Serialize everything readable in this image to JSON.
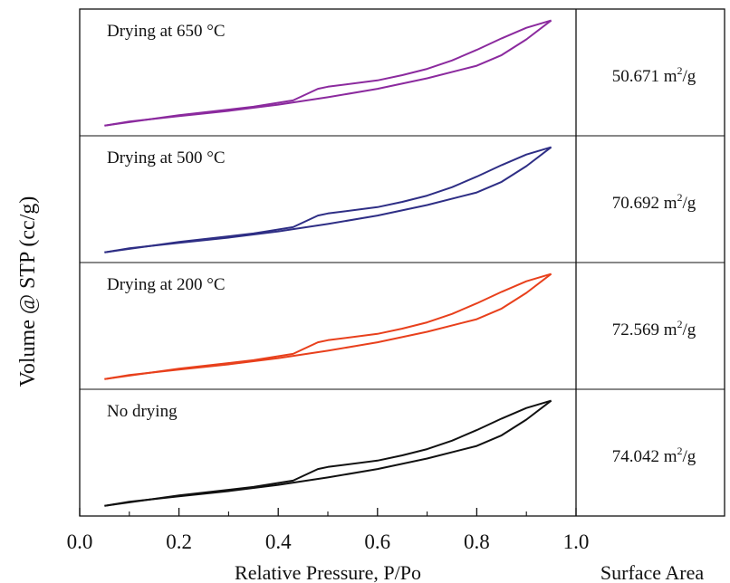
{
  "chart_data": {
    "type": "line",
    "xlabel": "Relative Pressure, P/Po",
    "ylabel": "Volume @ STP (cc/g)",
    "right_column_label": "Surface Area",
    "xlim": [
      0.0,
      1.0
    ],
    "xticks": [
      "0.0",
      "0.2",
      "0.4",
      "0.6",
      "0.8",
      "1.0"
    ],
    "area_unit": "m",
    "area_unit_exp": "2",
    "area_unit_suffix": "/g",
    "panels": [
      {
        "label": "Drying at 650 °C",
        "surface_area": "50.671",
        "color": "#8b2a9e",
        "adsorption": [
          [
            0.05,
            0.0
          ],
          [
            0.1,
            0.04
          ],
          [
            0.2,
            0.09
          ],
          [
            0.3,
            0.14
          ],
          [
            0.4,
            0.2
          ],
          [
            0.5,
            0.27
          ],
          [
            0.6,
            0.35
          ],
          [
            0.7,
            0.45
          ],
          [
            0.8,
            0.57
          ],
          [
            0.85,
            0.67
          ],
          [
            0.9,
            0.82
          ],
          [
            0.95,
            1.0
          ]
        ],
        "desorption": [
          [
            0.95,
            1.0
          ],
          [
            0.9,
            0.93
          ],
          [
            0.85,
            0.83
          ],
          [
            0.8,
            0.72
          ],
          [
            0.75,
            0.62
          ],
          [
            0.7,
            0.54
          ],
          [
            0.65,
            0.48
          ],
          [
            0.6,
            0.43
          ],
          [
            0.5,
            0.37
          ],
          [
            0.48,
            0.35
          ],
          [
            0.43,
            0.24
          ],
          [
            0.35,
            0.18
          ],
          [
            0.2,
            0.1
          ],
          [
            0.05,
            0.0
          ]
        ]
      },
      {
        "label": "Drying at 500 °C",
        "surface_area": "70.692",
        "color": "#2e2e85",
        "adsorption": [
          [
            0.05,
            0.0
          ],
          [
            0.1,
            0.04
          ],
          [
            0.2,
            0.09
          ],
          [
            0.3,
            0.14
          ],
          [
            0.4,
            0.2
          ],
          [
            0.5,
            0.27
          ],
          [
            0.6,
            0.35
          ],
          [
            0.7,
            0.45
          ],
          [
            0.8,
            0.57
          ],
          [
            0.85,
            0.67
          ],
          [
            0.9,
            0.82
          ],
          [
            0.95,
            1.0
          ]
        ],
        "desorption": [
          [
            0.95,
            1.0
          ],
          [
            0.9,
            0.93
          ],
          [
            0.85,
            0.83
          ],
          [
            0.8,
            0.72
          ],
          [
            0.75,
            0.62
          ],
          [
            0.7,
            0.54
          ],
          [
            0.65,
            0.48
          ],
          [
            0.6,
            0.43
          ],
          [
            0.5,
            0.37
          ],
          [
            0.48,
            0.35
          ],
          [
            0.43,
            0.24
          ],
          [
            0.35,
            0.18
          ],
          [
            0.2,
            0.1
          ],
          [
            0.05,
            0.0
          ]
        ]
      },
      {
        "label": "Drying at 200 °C",
        "surface_area": "72.569",
        "color": "#e8401c",
        "adsorption": [
          [
            0.05,
            0.0
          ],
          [
            0.1,
            0.04
          ],
          [
            0.2,
            0.09
          ],
          [
            0.3,
            0.14
          ],
          [
            0.4,
            0.2
          ],
          [
            0.5,
            0.27
          ],
          [
            0.6,
            0.35
          ],
          [
            0.7,
            0.45
          ],
          [
            0.8,
            0.57
          ],
          [
            0.85,
            0.67
          ],
          [
            0.9,
            0.82
          ],
          [
            0.95,
            1.0
          ]
        ],
        "desorption": [
          [
            0.95,
            1.0
          ],
          [
            0.9,
            0.93
          ],
          [
            0.85,
            0.83
          ],
          [
            0.8,
            0.72
          ],
          [
            0.75,
            0.62
          ],
          [
            0.7,
            0.54
          ],
          [
            0.65,
            0.48
          ],
          [
            0.6,
            0.43
          ],
          [
            0.5,
            0.37
          ],
          [
            0.48,
            0.35
          ],
          [
            0.43,
            0.24
          ],
          [
            0.35,
            0.18
          ],
          [
            0.2,
            0.1
          ],
          [
            0.05,
            0.0
          ]
        ]
      },
      {
        "label": "No drying",
        "surface_area": "74.042",
        "color": "#111111",
        "adsorption": [
          [
            0.05,
            0.0
          ],
          [
            0.1,
            0.04
          ],
          [
            0.2,
            0.09
          ],
          [
            0.3,
            0.14
          ],
          [
            0.4,
            0.2
          ],
          [
            0.5,
            0.27
          ],
          [
            0.6,
            0.35
          ],
          [
            0.7,
            0.45
          ],
          [
            0.8,
            0.57
          ],
          [
            0.85,
            0.67
          ],
          [
            0.9,
            0.82
          ],
          [
            0.95,
            1.0
          ]
        ],
        "desorption": [
          [
            0.95,
            1.0
          ],
          [
            0.9,
            0.93
          ],
          [
            0.85,
            0.83
          ],
          [
            0.8,
            0.72
          ],
          [
            0.75,
            0.62
          ],
          [
            0.7,
            0.54
          ],
          [
            0.65,
            0.48
          ],
          [
            0.6,
            0.43
          ],
          [
            0.5,
            0.37
          ],
          [
            0.48,
            0.35
          ],
          [
            0.43,
            0.24
          ],
          [
            0.35,
            0.18
          ],
          [
            0.2,
            0.1
          ],
          [
            0.05,
            0.0
          ]
        ]
      }
    ]
  }
}
